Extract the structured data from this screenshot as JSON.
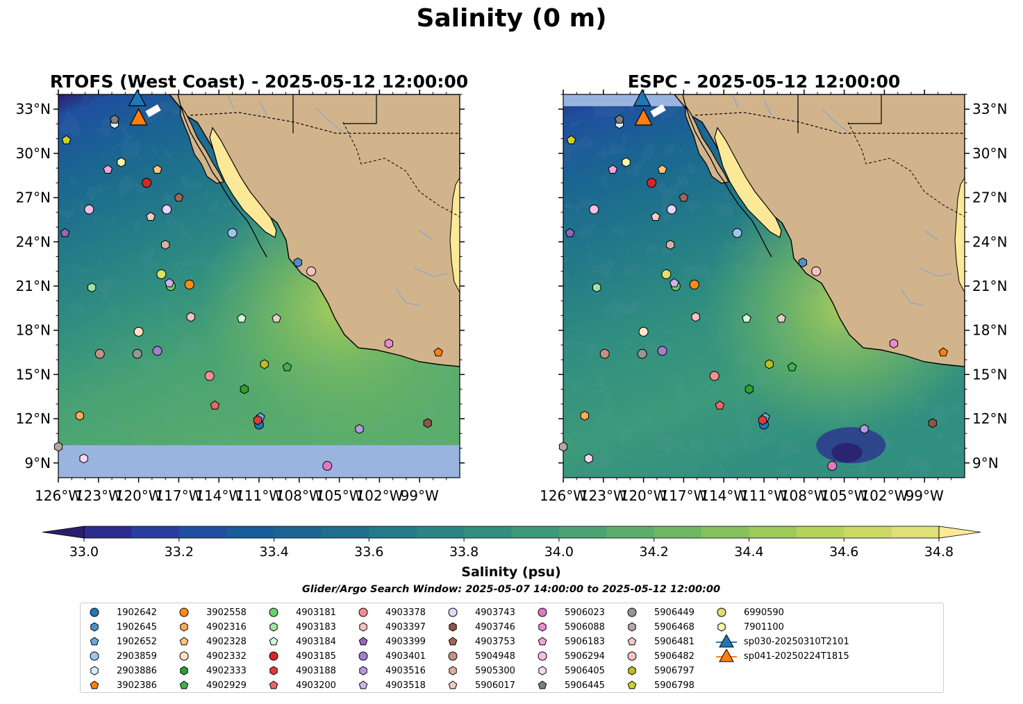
{
  "figure": {
    "title": "Salinity (0 m)",
    "colorbar_label": "Salinity (psu)",
    "search_window": "Glider/Argo Search Window: 2025-05-07 14:00:00 to 2025-05-12 12:00:00"
  },
  "colors": {
    "land": "#d2b48c",
    "nodata": "#9ab4e0",
    "gulf": "#fbe997"
  },
  "chart_data": [
    {
      "type": "heatmap",
      "title": "RTOFS (West Coast) - 2025-05-12 12:00:00",
      "xlim": [
        -126,
        -96
      ],
      "ylim": [
        8,
        34
      ],
      "x_ticks": [
        "126°W",
        "123°W",
        "120°W",
        "117°W",
        "114°W",
        "111°W",
        "108°W",
        "105°W",
        "102°W",
        "99°W"
      ],
      "y_ticks": [
        "9°N",
        "12°N",
        "15°N",
        "18°N",
        "21°N",
        "24°N",
        "27°N",
        "30°N",
        "33°N"
      ],
      "y_tick_side": "left",
      "nodata_band_below_lat": 10.2
    },
    {
      "type": "heatmap",
      "title": "ESPC - 2025-05-12 12:00:00",
      "xlim": [
        -126,
        -96
      ],
      "ylim": [
        8,
        34
      ],
      "x_ticks": [
        "126°W",
        "123°W",
        "120°W",
        "117°W",
        "114°W",
        "111°W",
        "108°W",
        "105°W",
        "102°W",
        "99°W"
      ],
      "y_ticks": [
        "9°N",
        "12°N",
        "15°N",
        "18°N",
        "21°N",
        "24°N",
        "27°N",
        "30°N",
        "33°N"
      ],
      "y_tick_side": "right",
      "nodata_band_above_lat": 33.2
    }
  ],
  "colorbar": {
    "min": 32.9,
    "max": 34.9,
    "step": 0.1,
    "ticks": [
      "33.0",
      "33.2",
      "33.4",
      "33.6",
      "33.8",
      "34.0",
      "34.2",
      "34.4",
      "34.6",
      "34.8"
    ],
    "colors": [
      "#2a1e6c",
      "#2c2c8e",
      "#293ea0",
      "#1f4f9f",
      "#185c99",
      "#1a6592",
      "#1f6f8c",
      "#237a88",
      "#2a8584",
      "#318f80",
      "#3c997a",
      "#4aa373",
      "#5bad6b",
      "#6fb763",
      "#86c15c",
      "#9dca58",
      "#b5d25a",
      "#cbd964",
      "#dee078",
      "#fbe997"
    ]
  },
  "argo_floats": [
    {
      "id": "1902642",
      "marker": "circle",
      "color": "#1f77b4",
      "lon": -111.0,
      "lat": 11.6
    },
    {
      "id": "1902645",
      "marker": "hexagon",
      "color": "#4f8fc4",
      "lon": -108.1,
      "lat": 22.6
    },
    {
      "id": "1902652",
      "marker": "pentagon",
      "color": "#6aa7dc",
      "lon": -110.9,
      "lat": 12.1
    },
    {
      "id": "2903859",
      "marker": "circle",
      "color": "#9ec5ee",
      "lon": -113.0,
      "lat": 24.6
    },
    {
      "id": "2903886",
      "marker": "hexagon",
      "color": "#d6ecff",
      "lon": -121.8,
      "lat": 32.0
    },
    {
      "id": "3902386",
      "marker": "pentagon",
      "color": "#ff7f0e",
      "lon": -97.6,
      "lat": 16.5
    },
    {
      "id": "3902558",
      "marker": "circle",
      "color": "#ff8c1a",
      "lon": -116.2,
      "lat": 21.1
    },
    {
      "id": "4902316",
      "marker": "hexagon",
      "color": "#ffaa55",
      "lon": -124.4,
      "lat": 12.2
    },
    {
      "id": "4902328",
      "marker": "pentagon",
      "color": "#ffc57e",
      "lon": -118.6,
      "lat": 28.9
    },
    {
      "id": "4902332",
      "marker": "circle",
      "color": "#ffe3c4",
      "lon": -120.0,
      "lat": 17.9
    },
    {
      "id": "4902333",
      "marker": "hexagon",
      "color": "#2ca02c",
      "lon": -112.1,
      "lat": 14.0
    },
    {
      "id": "4902929",
      "marker": "pentagon",
      "color": "#3cb44b",
      "lon": -108.9,
      "lat": 15.5
    },
    {
      "id": "4903181",
      "marker": "circle",
      "color": "#6ccf6c",
      "lon": -117.6,
      "lat": 21.0
    },
    {
      "id": "4903183",
      "marker": "hexagon",
      "color": "#9ee39e",
      "lon": -123.5,
      "lat": 20.9
    },
    {
      "id": "4903184",
      "marker": "pentagon",
      "color": "#d6f7d6",
      "lon": -112.3,
      "lat": 18.8
    },
    {
      "id": "4903185",
      "marker": "circle",
      "color": "#d62728",
      "lon": -119.4,
      "lat": 28.0
    },
    {
      "id": "4903188",
      "marker": "hexagon",
      "color": "#e03b3b",
      "lon": -111.1,
      "lat": 11.9
    },
    {
      "id": "4903200",
      "marker": "pentagon",
      "color": "#ee6666",
      "lon": -114.3,
      "lat": 12.9
    },
    {
      "id": "4903378",
      "marker": "circle",
      "color": "#f48f8f",
      "lon": -114.7,
      "lat": 14.9
    },
    {
      "id": "4903397",
      "marker": "hexagon",
      "color": "#f9c0c0",
      "lon": -116.1,
      "lat": 18.9
    },
    {
      "id": "4903399",
      "marker": "pentagon",
      "color": "#9467bd",
      "lon": -125.5,
      "lat": 24.6
    },
    {
      "id": "4903401",
      "marker": "circle",
      "color": "#a47fd0",
      "lon": -118.6,
      "lat": 16.6
    },
    {
      "id": "4903516",
      "marker": "hexagon",
      "color": "#b899e0",
      "lon": -103.5,
      "lat": 11.3
    },
    {
      "id": "4903518",
      "marker": "pentagon",
      "color": "#ccb5ee",
      "lon": -117.7,
      "lat": 21.2
    },
    {
      "id": "4903743",
      "marker": "circle",
      "color": "#e5d6fa",
      "lon": -117.9,
      "lat": 26.2
    },
    {
      "id": "4903746",
      "marker": "hexagon",
      "color": "#8c564b",
      "lon": -98.4,
      "lat": 11.7
    },
    {
      "id": "4903753",
      "marker": "pentagon",
      "color": "#a0665a",
      "lon": -117.0,
      "lat": 27.0
    },
    {
      "id": "5904948",
      "marker": "circle",
      "color": "#c29286",
      "lon": -122.9,
      "lat": 16.4
    },
    {
      "id": "5905300",
      "marker": "hexagon",
      "color": "#d8b0a4",
      "lon": -118.0,
      "lat": 23.8
    },
    {
      "id": "5906017",
      "marker": "pentagon",
      "color": "#f1cbc0",
      "lon": -119.1,
      "lat": 25.7
    },
    {
      "id": "5906023",
      "marker": "circle",
      "color": "#e377c2",
      "lon": -105.9,
      "lat": 8.8
    },
    {
      "id": "5906088",
      "marker": "hexagon",
      "color": "#ea8ccd",
      "lon": -101.3,
      "lat": 17.1
    },
    {
      "id": "5906183",
      "marker": "pentagon",
      "color": "#f2a6d8",
      "lon": -122.3,
      "lat": 28.9
    },
    {
      "id": "5906294",
      "marker": "circle",
      "color": "#f7bde2",
      "lon": -123.7,
      "lat": 26.2
    },
    {
      "id": "5906405",
      "marker": "hexagon",
      "color": "#fcd8ee",
      "lon": -124.1,
      "lat": 9.3
    },
    {
      "id": "5906445",
      "marker": "pentagon",
      "color": "#7f7f7f",
      "lon": -121.8,
      "lat": 32.3
    },
    {
      "id": "5906449",
      "marker": "circle",
      "color": "#969696",
      "lon": -120.1,
      "lat": 16.4
    },
    {
      "id": "5906468",
      "marker": "hexagon",
      "color": "#b3a8a0",
      "lon": -126.0,
      "lat": 10.1
    },
    {
      "id": "5906481",
      "marker": "pentagon",
      "color": "#e8cccc",
      "lon": -109.7,
      "lat": 18.8
    },
    {
      "id": "5906482",
      "marker": "circle",
      "color": "#f5c2c2",
      "lon": -107.1,
      "lat": 22.0
    },
    {
      "id": "5906797",
      "marker": "hexagon",
      "color": "#bcbd22",
      "lon": -110.6,
      "lat": 15.7
    },
    {
      "id": "5906798",
      "marker": "pentagon",
      "color": "#cfd030",
      "lon": -125.4,
      "lat": 30.9
    },
    {
      "id": "6990590",
      "marker": "circle",
      "color": "#dde06a",
      "lon": -118.3,
      "lat": 21.8
    },
    {
      "id": "7901100",
      "marker": "hexagon",
      "color": "#f7f7a8",
      "lon": -121.3,
      "lat": 29.4
    }
  ],
  "gliders": [
    {
      "id": "sp030-20250310T2101",
      "color": "#1f77b4",
      "lon": -120.1,
      "lat": 33.7
    },
    {
      "id": "sp041-20250224T1815",
      "color": "#ff7f0e",
      "lon": -120.0,
      "lat": 32.4
    }
  ]
}
